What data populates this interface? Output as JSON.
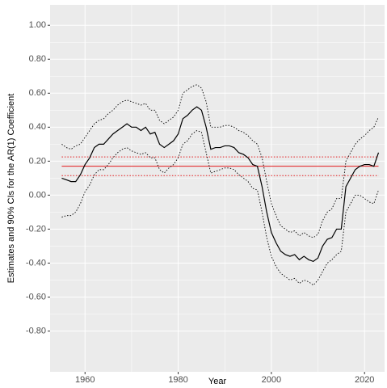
{
  "chart_data": {
    "type": "line",
    "x_label": "Year",
    "y_label": "Estimates and 90% CIs for the AR(1) Coefficient",
    "x": [
      1955,
      1956,
      1957,
      1958,
      1959,
      1960,
      1961,
      1962,
      1963,
      1964,
      1965,
      1966,
      1967,
      1968,
      1969,
      1970,
      1971,
      1972,
      1973,
      1974,
      1975,
      1976,
      1977,
      1978,
      1979,
      1980,
      1981,
      1982,
      1983,
      1984,
      1985,
      1986,
      1987,
      1988,
      1989,
      1990,
      1991,
      1992,
      1993,
      1994,
      1995,
      1996,
      1997,
      1998,
      1999,
      2000,
      2001,
      2002,
      2003,
      2004,
      2005,
      2006,
      2007,
      2008,
      2009,
      2010,
      2011,
      2012,
      2013,
      2014,
      2015,
      2016,
      2017,
      2018,
      2019,
      2020,
      2021,
      2022,
      2023
    ],
    "series": [
      {
        "color": "#000000",
        "dash": "solid",
        "values": [
          0.1,
          0.09,
          0.08,
          0.08,
          0.12,
          0.18,
          0.22,
          0.28,
          0.3,
          0.3,
          0.33,
          0.36,
          0.38,
          0.4,
          0.42,
          0.4,
          0.4,
          0.38,
          0.4,
          0.36,
          0.37,
          0.3,
          0.28,
          0.3,
          0.32,
          0.36,
          0.45,
          0.47,
          0.5,
          0.52,
          0.5,
          0.4,
          0.27,
          0.28,
          0.28,
          0.29,
          0.29,
          0.28,
          0.25,
          0.24,
          0.22,
          0.18,
          0.17,
          0.05,
          -0.1,
          -0.22,
          -0.28,
          -0.33,
          -0.35,
          -0.36,
          -0.35,
          -0.38,
          -0.36,
          -0.38,
          -0.39,
          -0.37,
          -0.3,
          -0.26,
          -0.25,
          -0.2,
          -0.2,
          0.05,
          0.1,
          0.15,
          0.17,
          0.18,
          0.18,
          0.17,
          0.25
        ]
      },
      {
        "color": "#000000",
        "dash": "dotted",
        "values": [
          0.3,
          0.28,
          0.27,
          0.29,
          0.3,
          0.34,
          0.38,
          0.42,
          0.44,
          0.45,
          0.48,
          0.5,
          0.53,
          0.55,
          0.56,
          0.55,
          0.54,
          0.53,
          0.54,
          0.5,
          0.5,
          0.44,
          0.42,
          0.44,
          0.46,
          0.5,
          0.6,
          0.62,
          0.64,
          0.65,
          0.63,
          0.55,
          0.4,
          0.4,
          0.4,
          0.41,
          0.41,
          0.4,
          0.38,
          0.37,
          0.35,
          0.32,
          0.3,
          0.22,
          0.08,
          -0.05,
          -0.12,
          -0.18,
          -0.2,
          -0.22,
          -0.21,
          -0.24,
          -0.22,
          -0.24,
          -0.25,
          -0.23,
          -0.15,
          -0.1,
          -0.08,
          -0.02,
          -0.02,
          0.2,
          0.25,
          0.3,
          0.33,
          0.35,
          0.38,
          0.4,
          0.46
        ]
      },
      {
        "color": "#000000",
        "dash": "dotted",
        "values": [
          -0.13,
          -0.12,
          -0.12,
          -0.1,
          -0.05,
          0.02,
          0.06,
          0.12,
          0.15,
          0.15,
          0.18,
          0.22,
          0.25,
          0.27,
          0.28,
          0.26,
          0.25,
          0.24,
          0.25,
          0.22,
          0.22,
          0.15,
          0.13,
          0.16,
          0.18,
          0.22,
          0.3,
          0.32,
          0.36,
          0.38,
          0.37,
          0.25,
          0.13,
          0.14,
          0.15,
          0.16,
          0.16,
          0.15,
          0.12,
          0.1,
          0.08,
          0.04,
          0.03,
          -0.1,
          -0.25,
          -0.36,
          -0.42,
          -0.46,
          -0.48,
          -0.5,
          -0.49,
          -0.52,
          -0.5,
          -0.51,
          -0.53,
          -0.5,
          -0.45,
          -0.4,
          -0.38,
          -0.35,
          -0.33,
          -0.1,
          -0.05,
          0.0,
          0.0,
          -0.02,
          -0.04,
          -0.05,
          0.03
        ]
      }
    ],
    "hlines": [
      {
        "value": 0.17,
        "color": "#e41a1c",
        "dash": "solid"
      },
      {
        "value": 0.225,
        "color": "#e41a1c",
        "dash": "dotted"
      },
      {
        "value": 0.115,
        "color": "#e41a1c",
        "dash": "dotted"
      }
    ],
    "xlim": [
      1952.5,
      2024.3
    ],
    "ylim": [
      -1.04,
      1.12
    ],
    "xticks": [
      1960,
      1980,
      2000,
      2020
    ],
    "yticks": [
      {
        "value": -0.8,
        "label": "-0.80"
      },
      {
        "value": -0.6,
        "label": "-0.60"
      },
      {
        "value": -0.4,
        "label": "-0.40"
      },
      {
        "value": -0.2,
        "label": "-0.20"
      },
      {
        "value": 0,
        "label": "0.00"
      },
      {
        "value": 0.2,
        "label": "0.20"
      },
      {
        "value": 0.4,
        "label": "0.40"
      },
      {
        "value": 0.6,
        "label": "0.60"
      },
      {
        "value": 0.8,
        "label": "0.80"
      },
      {
        "value": 1,
        "label": "1.00"
      }
    ],
    "grid": true,
    "background": "#ebebeb"
  }
}
